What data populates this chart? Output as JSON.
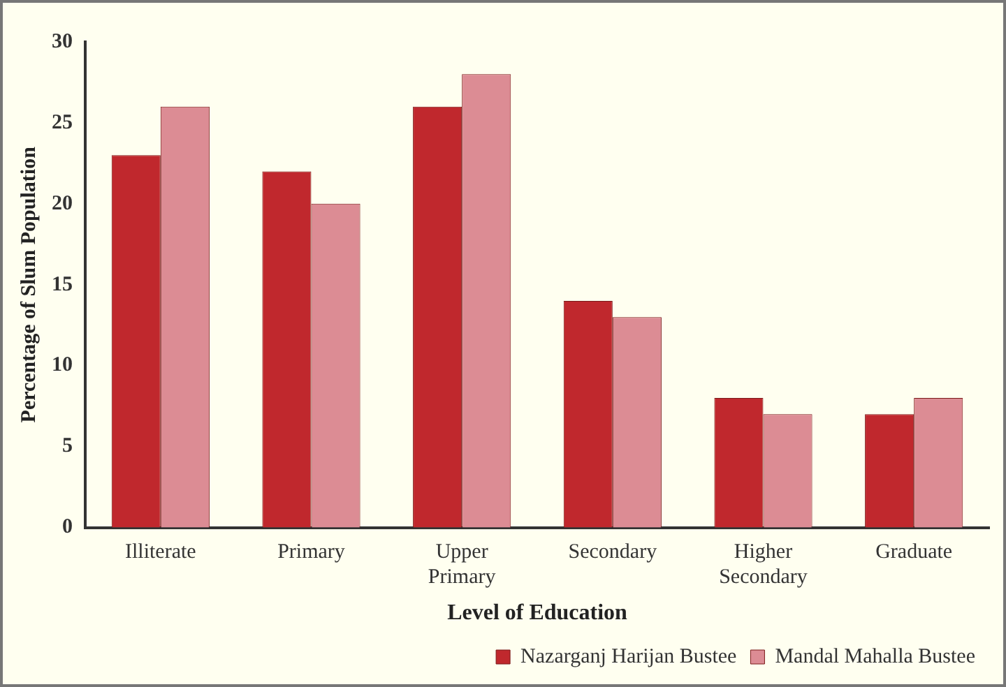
{
  "chart_data": {
    "type": "bar",
    "xlabel": "Level of Education",
    "ylabel": "Percentage of Slum Population",
    "categories": [
      "Illiterate",
      "Primary",
      "Upper Primary",
      "Secondary",
      "Higher Secondary",
      "Graduate"
    ],
    "series": [
      {
        "name": "Nazarganj Harijan Bustee",
        "color": "#c0282d",
        "values": [
          23,
          22,
          26,
          14,
          8,
          7
        ]
      },
      {
        "name": "Mandal Mahalla Bustee",
        "color": "#dc8c94",
        "values": [
          26,
          20,
          28,
          13,
          7,
          8
        ]
      }
    ],
    "ylim": [
      0,
      30
    ],
    "yticks": [
      0,
      5,
      10,
      15,
      20,
      25,
      30
    ],
    "grid": false,
    "legend": "bottom"
  }
}
